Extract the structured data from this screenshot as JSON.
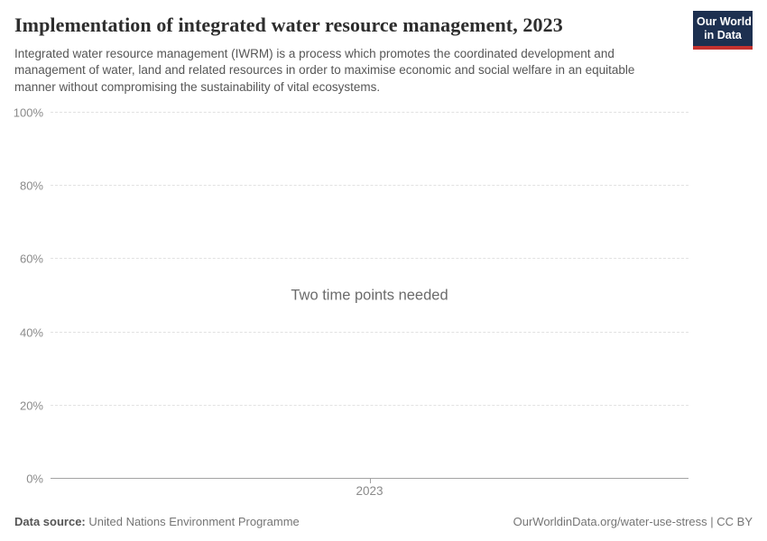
{
  "header": {
    "title": "Implementation of integrated water resource management, 2023",
    "subtitle": "Integrated water resource management (IWRM) is a process which promotes the coordinated development and management of water, land and related resources in order to maximise economic and social welfare in an equitable manner without compromising the sustainability of vital ecosystems.",
    "logo": {
      "line1": "Our World",
      "line2": "in Data",
      "bg_color": "#1d3050",
      "accent_color": "#c5322f"
    }
  },
  "chart_data": {
    "type": "line",
    "title": "Implementation of integrated water resource management, 2023",
    "series": [],
    "empty_message": "Two time points needed",
    "x": [
      2023
    ],
    "xticks": [
      "2023"
    ],
    "yticks": [
      {
        "value": 0,
        "label": "0%"
      },
      {
        "value": 20,
        "label": "20%"
      },
      {
        "value": 40,
        "label": "40%"
      },
      {
        "value": 60,
        "label": "60%"
      },
      {
        "value": 80,
        "label": "80%"
      },
      {
        "value": 100,
        "label": "100%"
      }
    ],
    "ylim": [
      0,
      100
    ],
    "xlabel": "",
    "ylabel": "",
    "grid": "horizontal-dashed",
    "legend": "none"
  },
  "footer": {
    "datasource_label": "Data source:",
    "datasource_value": "United Nations Environment Programme",
    "link": "OurWorldinData.org/water-use-stress | CC BY"
  }
}
